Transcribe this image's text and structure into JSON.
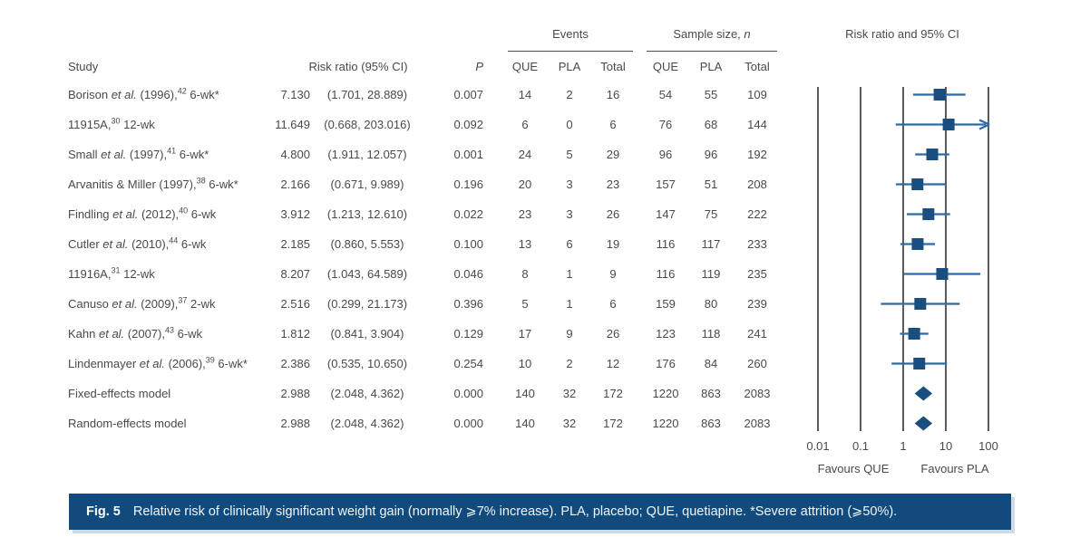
{
  "colors": {
    "marker": "#1a4e7e",
    "ci_line": "#2d6ba6",
    "grid": "#474747",
    "text": "#4a4a4a",
    "caption_bg": "#114a7c"
  },
  "table": {
    "headers": {
      "study": "Study",
      "risk_ratio": "Risk ratio (95% CI)",
      "p": "P",
      "events_group": "Events",
      "sample_group_prefix": "Sample size, ",
      "sample_group_n": "n",
      "que": "QUE",
      "pla": "PLA",
      "total": "Total"
    },
    "rows": [
      {
        "label": {
          "pre": "Borison ",
          "it": "et al.",
          "mid": " (1996),",
          "sup": "42",
          "post": " 6-wk*"
        },
        "rr": "7.130",
        "ci": "(1.701, 28.889)",
        "p": "0.007",
        "eq": "14",
        "ep": "2",
        "et": "16",
        "sq": "54",
        "sp": "55",
        "st": "109"
      },
      {
        "label": {
          "pre": "11915A,",
          "it": "",
          "mid": "",
          "sup": "30",
          "post": " 12-wk"
        },
        "rr": "11.649",
        "ci": "(0.668, 203.016)",
        "p": "0.092",
        "eq": "6",
        "ep": "0",
        "et": "6",
        "sq": "76",
        "sp": "68",
        "st": "144"
      },
      {
        "label": {
          "pre": "Small ",
          "it": "et al.",
          "mid": " (1997),",
          "sup": "41",
          "post": " 6-wk*"
        },
        "rr": "4.800",
        "ci": "(1.911, 12.057)",
        "p": "0.001",
        "eq": "24",
        "ep": "5",
        "et": "29",
        "sq": "96",
        "sp": "96",
        "st": "192"
      },
      {
        "label": {
          "pre": "Arvanitis & Miller (1997),",
          "it": "",
          "mid": "",
          "sup": "38",
          "post": " 6-wk*"
        },
        "rr": "2.166",
        "ci": "(0.671, 9.989)",
        "p": "0.196",
        "eq": "20",
        "ep": "3",
        "et": "23",
        "sq": "157",
        "sp": "51",
        "st": "208"
      },
      {
        "label": {
          "pre": "Findling ",
          "it": "et al.",
          "mid": " (2012),",
          "sup": "40",
          "post": " 6-wk"
        },
        "rr": "3.912",
        "ci": "(1.213, 12.610)",
        "p": "0.022",
        "eq": "23",
        "ep": "3",
        "et": "26",
        "sq": "147",
        "sp": "75",
        "st": "222"
      },
      {
        "label": {
          "pre": "Cutler ",
          "it": "et al.",
          "mid": " (2010),",
          "sup": "44",
          "post": " 6-wk"
        },
        "rr": "2.185",
        "ci": "(0.860, 5.553)",
        "p": "0.100",
        "eq": "13",
        "ep": "6",
        "et": "19",
        "sq": "116",
        "sp": "117",
        "st": "233"
      },
      {
        "label": {
          "pre": "11916A,",
          "it": "",
          "mid": "",
          "sup": "31",
          "post": " 12-wk"
        },
        "rr": "8.207",
        "ci": "(1.043, 64.589)",
        "p": "0.046",
        "eq": "8",
        "ep": "1",
        "et": "9",
        "sq": "116",
        "sp": "119",
        "st": "235"
      },
      {
        "label": {
          "pre": "Canuso ",
          "it": "et al.",
          "mid": " (2009),",
          "sup": "37",
          "post": " 2-wk"
        },
        "rr": "2.516",
        "ci": "(0.299, 21.173)",
        "p": "0.396",
        "eq": "5",
        "ep": "1",
        "et": "6",
        "sq": "159",
        "sp": "80",
        "st": "239"
      },
      {
        "label": {
          "pre": "Kahn ",
          "it": "et al.",
          "mid": " (2007),",
          "sup": "43",
          "post": " 6-wk"
        },
        "rr": "1.812",
        "ci": "(0.841, 3.904)",
        "p": "0.129",
        "eq": "17",
        "ep": "9",
        "et": "26",
        "sq": "123",
        "sp": "118",
        "st": "241"
      },
      {
        "label": {
          "pre": "Lindenmayer ",
          "it": "et al.",
          "mid": " (2006),",
          "sup": "39",
          "post": " 6-wk*"
        },
        "rr": "2.386",
        "ci": "(0.535, 10.650)",
        "p": "0.254",
        "eq": "10",
        "ep": "2",
        "et": "12",
        "sq": "176",
        "sp": "84",
        "st": "260"
      },
      {
        "label": {
          "pre": "Fixed-effects model",
          "it": "",
          "mid": "",
          "sup": "",
          "post": ""
        },
        "rr": "2.988",
        "ci": "(2.048, 4.362)",
        "p": "0.000",
        "eq": "140",
        "ep": "32",
        "et": "172",
        "sq": "1220",
        "sp": "863",
        "st": "2083"
      },
      {
        "label": {
          "pre": "Random-effects model",
          "it": "",
          "mid": "",
          "sup": "",
          "post": ""
        },
        "rr": "2.988",
        "ci": "(2.048, 4.362)",
        "p": "0.000",
        "eq": "140",
        "ep": "32",
        "et": "172",
        "sq": "1220",
        "sp": "863",
        "st": "2083"
      }
    ]
  },
  "chart_data": {
    "type": "scatter",
    "subtype": "forest_plot",
    "title": "Risk ratio and 95% CI",
    "x_scale": "log10",
    "xlim": [
      0.01,
      100
    ],
    "x_ticks": [
      0.01,
      0.1,
      1,
      10,
      100
    ],
    "x_tick_labels": [
      "0.01",
      "0.1",
      "1",
      "10",
      "100"
    ],
    "favours_left": "Favours QUE",
    "favours_right": "Favours PLA",
    "grid": "vertical-lines-at-ticks",
    "points": [
      {
        "study": "Borison et al. (1996), 6-wk*",
        "rr": 7.13,
        "ci_low": 1.701,
        "ci_high": 28.889,
        "marker": "square",
        "clipped_high": false
      },
      {
        "study": "11915A, 12-wk",
        "rr": 11.649,
        "ci_low": 0.668,
        "ci_high": 203.016,
        "marker": "square",
        "clipped_high": true
      },
      {
        "study": "Small et al. (1997), 6-wk*",
        "rr": 4.8,
        "ci_low": 1.911,
        "ci_high": 12.057,
        "marker": "square",
        "clipped_high": false
      },
      {
        "study": "Arvanitis & Miller (1997), 6-wk*",
        "rr": 2.166,
        "ci_low": 0.671,
        "ci_high": 9.989,
        "marker": "square",
        "clipped_high": false
      },
      {
        "study": "Findling et al. (2012), 6-wk",
        "rr": 3.912,
        "ci_low": 1.213,
        "ci_high": 12.61,
        "marker": "square",
        "clipped_high": false
      },
      {
        "study": "Cutler et al. (2010), 6-wk",
        "rr": 2.185,
        "ci_low": 0.86,
        "ci_high": 5.553,
        "marker": "square",
        "clipped_high": false
      },
      {
        "study": "11916A, 12-wk",
        "rr": 8.207,
        "ci_low": 1.043,
        "ci_high": 64.589,
        "marker": "square",
        "clipped_high": false
      },
      {
        "study": "Canuso et al. (2009), 2-wk",
        "rr": 2.516,
        "ci_low": 0.299,
        "ci_high": 21.173,
        "marker": "square",
        "clipped_high": false
      },
      {
        "study": "Kahn et al. (2007), 6-wk",
        "rr": 1.812,
        "ci_low": 0.841,
        "ci_high": 3.904,
        "marker": "square",
        "clipped_high": false
      },
      {
        "study": "Lindenmayer et al. (2006), 6-wk*",
        "rr": 2.386,
        "ci_low": 0.535,
        "ci_high": 10.65,
        "marker": "square",
        "clipped_high": false
      },
      {
        "study": "Fixed-effects model",
        "rr": 2.988,
        "ci_low": 2.048,
        "ci_high": 4.362,
        "marker": "diamond",
        "clipped_high": false
      },
      {
        "study": "Random-effects model",
        "rr": 2.988,
        "ci_low": 2.048,
        "ci_high": 4.362,
        "marker": "diamond",
        "clipped_high": false
      }
    ]
  },
  "caption": {
    "fig_label": "Fig. 5",
    "text": "Relative risk of clinically significant weight gain (normally ⩾7% increase). PLA, placebo; QUE, quetiapine. *Severe attrition (⩾50%)."
  }
}
